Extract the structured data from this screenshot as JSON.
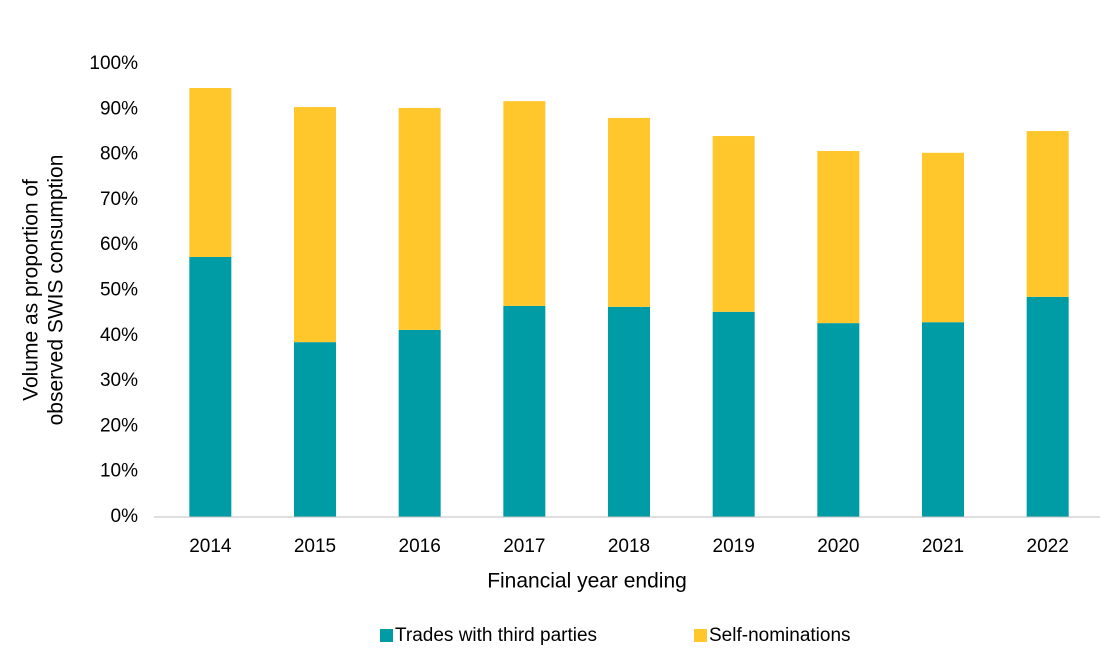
{
  "chart_data": {
    "type": "stacked_bar",
    "ylabel": [
      "Volume as proportion of",
      "observed SWIS consumption"
    ],
    "xlabel": "Financial year ending",
    "categories": [
      "2014",
      "2015",
      "2016",
      "2017",
      "2018",
      "2019",
      "2020",
      "2021",
      "2022"
    ],
    "series": [
      {
        "name": "Trades with third parties",
        "color": "#009ca6",
        "values": [
          57.4,
          38.6,
          41.3,
          46.6,
          46.4,
          45.3,
          42.8,
          43.0,
          48.6
        ]
      },
      {
        "name": "Self-nominations",
        "color": "#ffc72c",
        "values": [
          37.3,
          51.9,
          49.0,
          45.2,
          41.7,
          38.8,
          38.0,
          37.4,
          36.6
        ]
      }
    ],
    "ylim": [
      0,
      100
    ],
    "yticks": [
      {
        "value": 0,
        "label": "0%"
      },
      {
        "value": 10,
        "label": "10%"
      },
      {
        "value": 20,
        "label": "20%"
      },
      {
        "value": 30,
        "label": "30%"
      },
      {
        "value": 40,
        "label": "40%"
      },
      {
        "value": 50,
        "label": "50%"
      },
      {
        "value": 60,
        "label": "60%"
      },
      {
        "value": 70,
        "label": "70%"
      },
      {
        "value": 80,
        "label": "80%"
      },
      {
        "value": 90,
        "label": "90%"
      },
      {
        "value": 100,
        "label": "100%"
      }
    ],
    "grid": false,
    "legend": "bottom"
  }
}
